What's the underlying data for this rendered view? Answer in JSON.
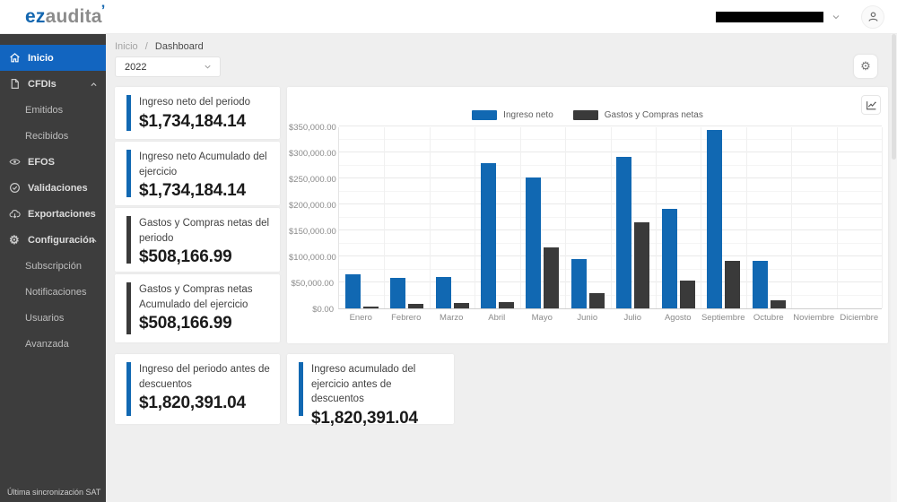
{
  "header": {
    "logo_primary": "ez",
    "logo_secondary": "audita",
    "logo_accent": "’"
  },
  "breadcrumb": {
    "items": [
      "Inicio",
      "Dashboard"
    ],
    "separator": "/"
  },
  "filters": {
    "year": "2022"
  },
  "colors": {
    "accent_blue": "#1168b2",
    "accent_dark": "#3a3a3a",
    "sidebar_active_blue": "#1265c0"
  },
  "sidebar": {
    "items": [
      {
        "id": "inicio",
        "label": "Inicio",
        "icon": "home-icon",
        "active": true
      },
      {
        "id": "cfdis",
        "label": "CFDIs",
        "icon": "document-icon",
        "expanded": true,
        "children": [
          {
            "id": "emitidos",
            "label": "Emitidos"
          },
          {
            "id": "recibidos",
            "label": "Recibidos"
          }
        ]
      },
      {
        "id": "efos",
        "label": "EFOS",
        "icon": "eye-icon"
      },
      {
        "id": "validaciones",
        "label": "Validaciones",
        "icon": "check-circle-icon"
      },
      {
        "id": "exportaciones",
        "label": "Exportaciones",
        "icon": "cloud-download-icon"
      },
      {
        "id": "configuracion",
        "label": "Configuración",
        "icon": "gear-icon",
        "expanded": true,
        "children": [
          {
            "id": "subscripcion",
            "label": "Subscripción"
          },
          {
            "id": "notificaciones",
            "label": "Notificaciones"
          },
          {
            "id": "usuarios",
            "label": "Usuarios"
          },
          {
            "id": "avanzada",
            "label": "Avanzada"
          }
        ]
      }
    ],
    "footer": "Última sincronización SAT"
  },
  "stat_cards": [
    {
      "label": "Ingreso neto del periodo",
      "value": "$1,734,184.14",
      "accent": "blue",
      "height": 58
    },
    {
      "label": "Ingreso neto Acumulado del ejercicio",
      "value": "$1,734,184.14",
      "accent": "blue",
      "height": 71
    },
    {
      "label": "Gastos y Compras netas del periodo",
      "value": "$508,166.99",
      "accent": "dark",
      "height": 71
    },
    {
      "label": "Gastos y Compras netas Acumulado del ejercicio",
      "value": "$508,166.99",
      "accent": "dark",
      "height": 76
    }
  ],
  "bottom_cards": [
    {
      "label": "Ingreso del periodo antes de descuentos",
      "value": "$1,820,391.04",
      "accent": "blue"
    },
    {
      "label": "Ingreso acumulado del ejercicio antes de descuentos",
      "value": "$1,820,391.04",
      "accent": "blue"
    }
  ],
  "chart_data": {
    "type": "bar",
    "title": "",
    "xlabel": "",
    "ylabel": "",
    "grid": true,
    "legend_position": "top",
    "categories": [
      "Enero",
      "Febrero",
      "Marzo",
      "Abril",
      "Mayo",
      "Junio",
      "Julio",
      "Agosto",
      "Septiembre",
      "Octubre",
      "Noviembre",
      "Diciembre"
    ],
    "series": [
      {
        "name": "Ingreso neto",
        "color": "#1168b2",
        "values": [
          65000,
          58000,
          61000,
          279000,
          251000,
          95000,
          291000,
          192000,
          343000,
          92000,
          0,
          0
        ]
      },
      {
        "name": "Gastos y Compras netas",
        "color": "#3a3a3a",
        "values": [
          2500,
          8000,
          10000,
          12500,
          118000,
          30000,
          165000,
          53000,
          91000,
          16000,
          0,
          0
        ]
      }
    ],
    "ylim": [
      0,
      350000
    ],
    "yticks": [
      0,
      50000,
      100000,
      150000,
      200000,
      250000,
      300000,
      350000
    ],
    "ytick_labels": [
      "$0.00",
      "$50,000.00",
      "$100,000.00",
      "$150,000.00",
      "$200,000.00",
      "$250,000.00",
      "$300,000.00",
      "$350,000.00"
    ],
    "minor_tick": 25000
  }
}
